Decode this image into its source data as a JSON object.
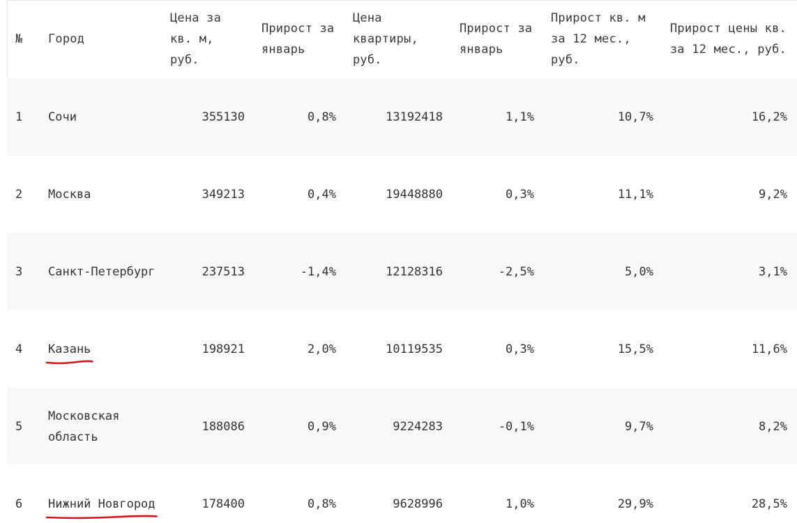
{
  "table": {
    "headers": [
      "№",
      "Город",
      "Цена за кв. м, руб.",
      "Прирост за январь",
      "Цена квартиры, руб.",
      "Прирост за январь",
      "Прирост кв. м за 12 мес., руб.",
      "Прирост цены кв. за 12 мес., руб."
    ],
    "rows": [
      {
        "num": "1",
        "city": "Сочи",
        "price_sqm": "355130",
        "growth_jan_sqm": "0,8%",
        "price_flat": "13192418",
        "growth_jan_flat": "1,1%",
        "growth_12m_sqm": "10,7%",
        "growth_12m_flat": "16,2%",
        "underlined": false
      },
      {
        "num": "2",
        "city": "Москва",
        "price_sqm": "349213",
        "growth_jan_sqm": "0,4%",
        "price_flat": "19448880",
        "growth_jan_flat": "0,3%",
        "growth_12m_sqm": "11,1%",
        "growth_12m_flat": "9,2%",
        "underlined": false
      },
      {
        "num": "3",
        "city": "Санкт-Петербург",
        "price_sqm": "237513",
        "growth_jan_sqm": "-1,4%",
        "price_flat": "12128316",
        "growth_jan_flat": "-2,5%",
        "growth_12m_sqm": "5,0%",
        "growth_12m_flat": "3,1%",
        "underlined": false
      },
      {
        "num": "4",
        "city": "Казань",
        "price_sqm": "198921",
        "growth_jan_sqm": "2,0%",
        "price_flat": "10119535",
        "growth_jan_flat": "0,3%",
        "growth_12m_sqm": "15,5%",
        "growth_12m_flat": "11,6%",
        "underlined": true
      },
      {
        "num": "5",
        "city": "Московская область",
        "price_sqm": "188086",
        "growth_jan_sqm": "0,9%",
        "price_flat": "9224283",
        "growth_jan_flat": "-0,1%",
        "growth_12m_sqm": "9,7%",
        "growth_12m_flat": "8,2%",
        "underlined": false
      },
      {
        "num": "6",
        "city": "Нижний Новгород",
        "price_sqm": "178400",
        "growth_jan_sqm": "0,8%",
        "price_flat": "9628996",
        "growth_jan_flat": "1,0%",
        "growth_12m_sqm": "29,9%",
        "growth_12m_flat": "28,5%",
        "underlined": true
      }
    ]
  },
  "colors": {
    "text": "#333333",
    "row_stripe": "#f8f8f8",
    "annotation_underline": "#e0101a"
  }
}
